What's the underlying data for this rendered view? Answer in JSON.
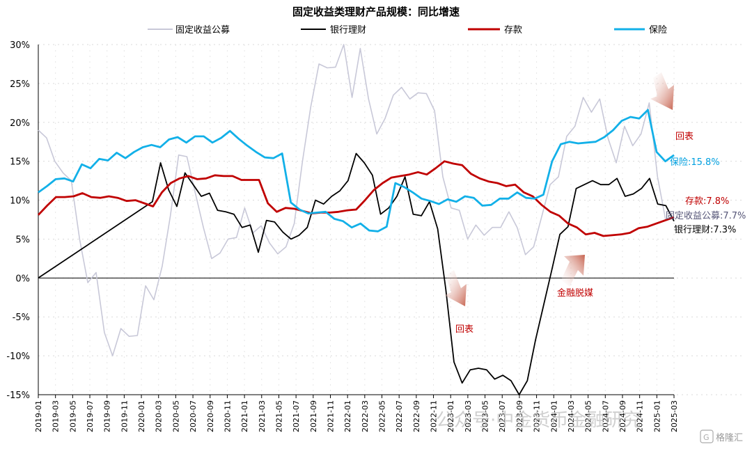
{
  "chart_data": {
    "type": "line",
    "title": "固定收益类理财产品规模：同比增速",
    "y_ticks": [
      "30%",
      "25%",
      "20%",
      "15%",
      "10%",
      "5%",
      "0%",
      "-5%",
      "-10%",
      "-15%"
    ],
    "ylim": [
      -15,
      30
    ],
    "x_ticks": [
      "2019-01",
      "2019-03",
      "2019-05",
      "2019-07",
      "2019-09",
      "2019-11",
      "2020-01",
      "2020-03",
      "2020-05",
      "2020-07",
      "2020-09",
      "2020-11",
      "2021-01",
      "2021-03",
      "2021-05",
      "2021-07",
      "2021-09",
      "2021-11",
      "2022-01",
      "2022-03",
      "2022-05",
      "2022-07",
      "2022-09",
      "2022-11",
      "2023-01",
      "2023-03",
      "2023-05",
      "2023-07",
      "2023-09",
      "2023-11",
      "2024-01",
      "2024-03",
      "2024-05",
      "2024-07",
      "2024-09",
      "2024-11",
      "2025-01",
      "2025-03"
    ],
    "legend": [
      "固定收益公募",
      "银行理财",
      "存款",
      "保险"
    ],
    "colors": {
      "固定收益公募": "#c8c8d8",
      "银行理财": "#000000",
      "存款": "#c00000",
      "保险": "#12b0e8"
    },
    "series": [
      {
        "name": "固定收益公募",
        "values": [
          19,
          18,
          15,
          13.5,
          12.5,
          5,
          -0.6,
          0.7,
          -7,
          -10,
          -6.5,
          -7.5,
          -7.4,
          -1,
          -2.8,
          1.5,
          8,
          15.8,
          15.6,
          11,
          6.5,
          2.5,
          3.2,
          5,
          5.2,
          9,
          5.8,
          6.7,
          4.5,
          3.1,
          4,
          7,
          15,
          22,
          27.5,
          27,
          27.1,
          30,
          23.2,
          29.5,
          23,
          18.5,
          20.5,
          23.5,
          24.5,
          23,
          23.8,
          23.7,
          21.5,
          13,
          9,
          8.7,
          5,
          6.8,
          5.5,
          6.5,
          6.5,
          8.5,
          6.5,
          3,
          4,
          8,
          12,
          13,
          18.2,
          19.5,
          23.2,
          21.3,
          23,
          18,
          14.8,
          19.5,
          17,
          18.5,
          22.5,
          13,
          7.4,
          7.7
        ]
      },
      {
        "name": "银行理财",
        "values": [
          0,
          null,
          null,
          null,
          null,
          null,
          null,
          null,
          null,
          null,
          null,
          null,
          null,
          null,
          9.8,
          14.8,
          11.3,
          9.2,
          13.5,
          12,
          10.5,
          10.9,
          8.7,
          8.5,
          8.2,
          6.5,
          6.8,
          3.3,
          7.4,
          7.2,
          5.9,
          5,
          5.5,
          6.5,
          10,
          9.5,
          10.5,
          11.2,
          12.5,
          16,
          14.8,
          13.2,
          8.2,
          9,
          10.5,
          13,
          8.2,
          8,
          9.8,
          6.3,
          -1.5,
          -10.8,
          -13.5,
          -11.8,
          -11.6,
          -11.8,
          -13,
          -12.5,
          -13.2,
          -15,
          -13.2,
          -8,
          -3.5,
          1,
          5.6,
          6.6,
          11.5,
          12,
          12.5,
          12,
          12,
          12.8,
          10.5,
          10.8,
          11.5,
          12.8,
          9.5,
          9.3,
          7.3
        ]
      },
      {
        "name": "存款",
        "values": [
          8.1,
          9.3,
          10.4,
          10.4,
          10.5,
          10.9,
          10.4,
          10.3,
          10.5,
          10.3,
          9.9,
          10,
          9.6,
          9.2,
          11,
          12.2,
          12.8,
          13.1,
          12.7,
          12.8,
          13.2,
          13.1,
          13.1,
          12.6,
          12.6,
          12.6,
          9.6,
          8.5,
          9,
          8.9,
          8.6,
          8.3,
          8.4,
          8.4,
          8.5,
          8.7,
          8.8,
          10,
          11.3,
          12.2,
          12.9,
          13.1,
          13.3,
          13.6,
          13.3,
          14.1,
          15,
          14.7,
          14.5,
          13.4,
          12.8,
          12.4,
          12.2,
          11.8,
          12,
          11,
          10.5,
          9.4,
          8.5,
          8,
          7,
          6.5,
          5.6,
          5.8,
          5.4,
          5.5,
          5.6,
          5.8,
          6.4,
          6.6,
          7,
          7.4,
          7.8
        ]
      },
      {
        "name": "保险",
        "values": [
          11,
          11.8,
          12.7,
          12.8,
          12.4,
          14.6,
          14.1,
          15.3,
          15.1,
          16.1,
          15.4,
          16.2,
          16.8,
          17.1,
          16.8,
          17.8,
          18.1,
          17.4,
          18.2,
          18.2,
          17.4,
          18,
          18.9,
          17.9,
          17,
          16.2,
          15.5,
          15.4,
          16,
          9.7,
          8.8,
          8.3,
          8.4,
          8.5,
          7.6,
          7.3,
          6.5,
          7,
          6.1,
          6,
          6.6,
          12.2,
          11.7,
          11,
          10.2,
          9.9,
          9.5,
          10.1,
          9.8,
          10.5,
          10.3,
          9.3,
          9.4,
          10.2,
          10.2,
          11,
          10.3,
          10.2,
          10.7,
          15,
          17.2,
          17.5,
          17.3,
          17.4,
          17.5,
          18.1,
          19,
          20.2,
          20.7,
          20.5,
          21.6,
          16.2,
          15,
          15.8
        ]
      }
    ],
    "annotations": {
      "insurance_end": "保险:15.8%",
      "deposit_end": "存款:7.8%",
      "fixed_income_end": "固定收益公募:7.7%",
      "wealth_end": "银行理财:7.3%",
      "huibiao_1": "回表",
      "huibiao_2": "回表",
      "jinrong_tuomei": "金融脱媒"
    },
    "grid": true
  },
  "watermark": {
    "text": "公众号·中金货币金融研究",
    "logo": "格隆汇"
  }
}
